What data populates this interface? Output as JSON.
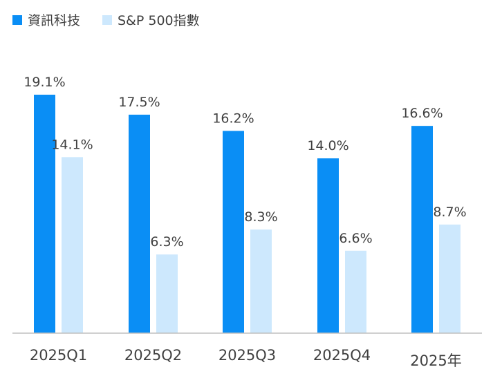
{
  "chart_data": {
    "type": "bar",
    "categories": [
      "2025Q1",
      "2025Q2",
      "2025Q3",
      "2025Q4",
      "2025年"
    ],
    "series": [
      {
        "name": "資訊科技",
        "values": [
          19.1,
          17.5,
          16.2,
          14.0,
          16.6
        ],
        "labels": [
          "19.1%",
          "17.5%",
          "16.2%",
          "14.0%",
          "16.6%"
        ],
        "color": "#0a8ef5"
      },
      {
        "name": "S&P 500指數",
        "values": [
          14.1,
          6.3,
          8.3,
          6.6,
          8.7
        ],
        "labels": [
          "14.1%",
          "6.3%",
          "8.3%",
          "6.6%",
          "8.7%"
        ],
        "color": "#cde8fd"
      }
    ],
    "ylim": [
      0,
      19.1
    ],
    "legend_position": "top-left",
    "grid": false,
    "axis_color": "#bfbfbf"
  }
}
